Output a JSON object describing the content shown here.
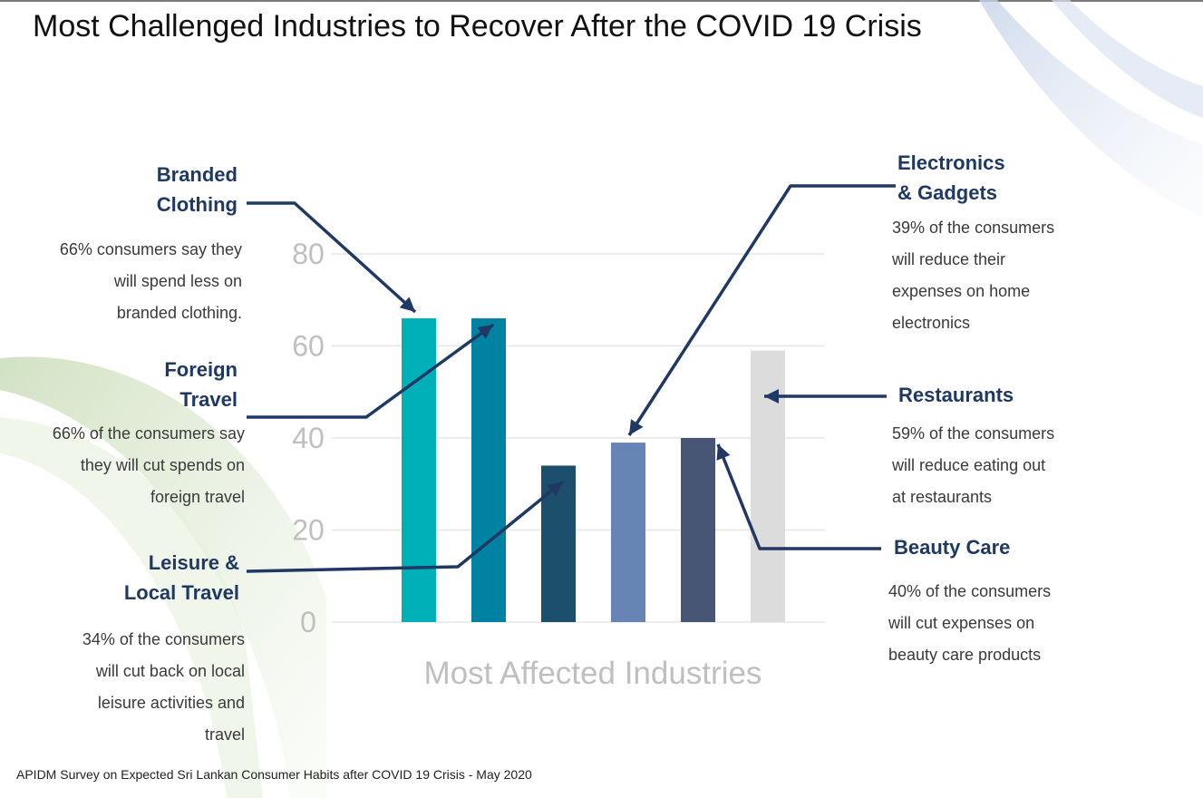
{
  "title": "Most Challenged Industries to Recover After the COVID 19 Crisis",
  "source": "APIDM Survey on Expected Sri Lankan Consumer Habits after COVID 19 Crisis - May 2020",
  "annotations": {
    "branded_clothing": {
      "label": [
        "Branded",
        "Clothing"
      ],
      "desc": [
        "66% consumers say they",
        "will spend less on",
        "branded clothing."
      ]
    },
    "foreign_travel": {
      "label": [
        "Foreign",
        "Travel"
      ],
      "desc": [
        "66% of the consumers say",
        "they will cut spends on",
        "foreign travel"
      ]
    },
    "leisure_travel": {
      "label": [
        "Leisure &",
        "Local Travel"
      ],
      "desc": [
        "34% of the consumers",
        "will cut back on local",
        "leisure activities and",
        "travel"
      ]
    },
    "electronics": {
      "label": [
        "Electronics",
        "& Gadgets"
      ],
      "desc": [
        "39% of the consumers",
        "will reduce their",
        "expenses on home",
        "electronics"
      ]
    },
    "restaurants": {
      "label": [
        "Restaurants"
      ],
      "desc": [
        "59% of the consumers",
        "will reduce eating out",
        "at restaurants"
      ]
    },
    "beauty_care": {
      "label": [
        "Beauty Care"
      ],
      "desc": [
        "40% of the consumers",
        "will cut expenses on",
        "beauty care products"
      ]
    }
  },
  "colors": {
    "label_text": "#1f3864",
    "arrow": "#1f3864",
    "axis_text": "#bfbfbf",
    "gridline": "#e6e6e6"
  },
  "chart_data": {
    "type": "bar",
    "xlabel": "Most Affected Industries",
    "ylabel": "",
    "ylim": [
      0,
      80
    ],
    "yticks": [
      0,
      20,
      40,
      60,
      80
    ],
    "grid": true,
    "legend": "none",
    "categories": [
      "Branded Clothing",
      "Foreign Travel",
      "Leisure & Local Travel",
      "Electronics & Gadgets",
      "Beauty Care",
      "Restaurants"
    ],
    "values": [
      66,
      66,
      34,
      39,
      40,
      59
    ],
    "bar_colors": [
      "#00b0b9",
      "#0083a3",
      "#1b4f6b",
      "#6685b5",
      "#485675",
      "#dcdcdc"
    ]
  }
}
